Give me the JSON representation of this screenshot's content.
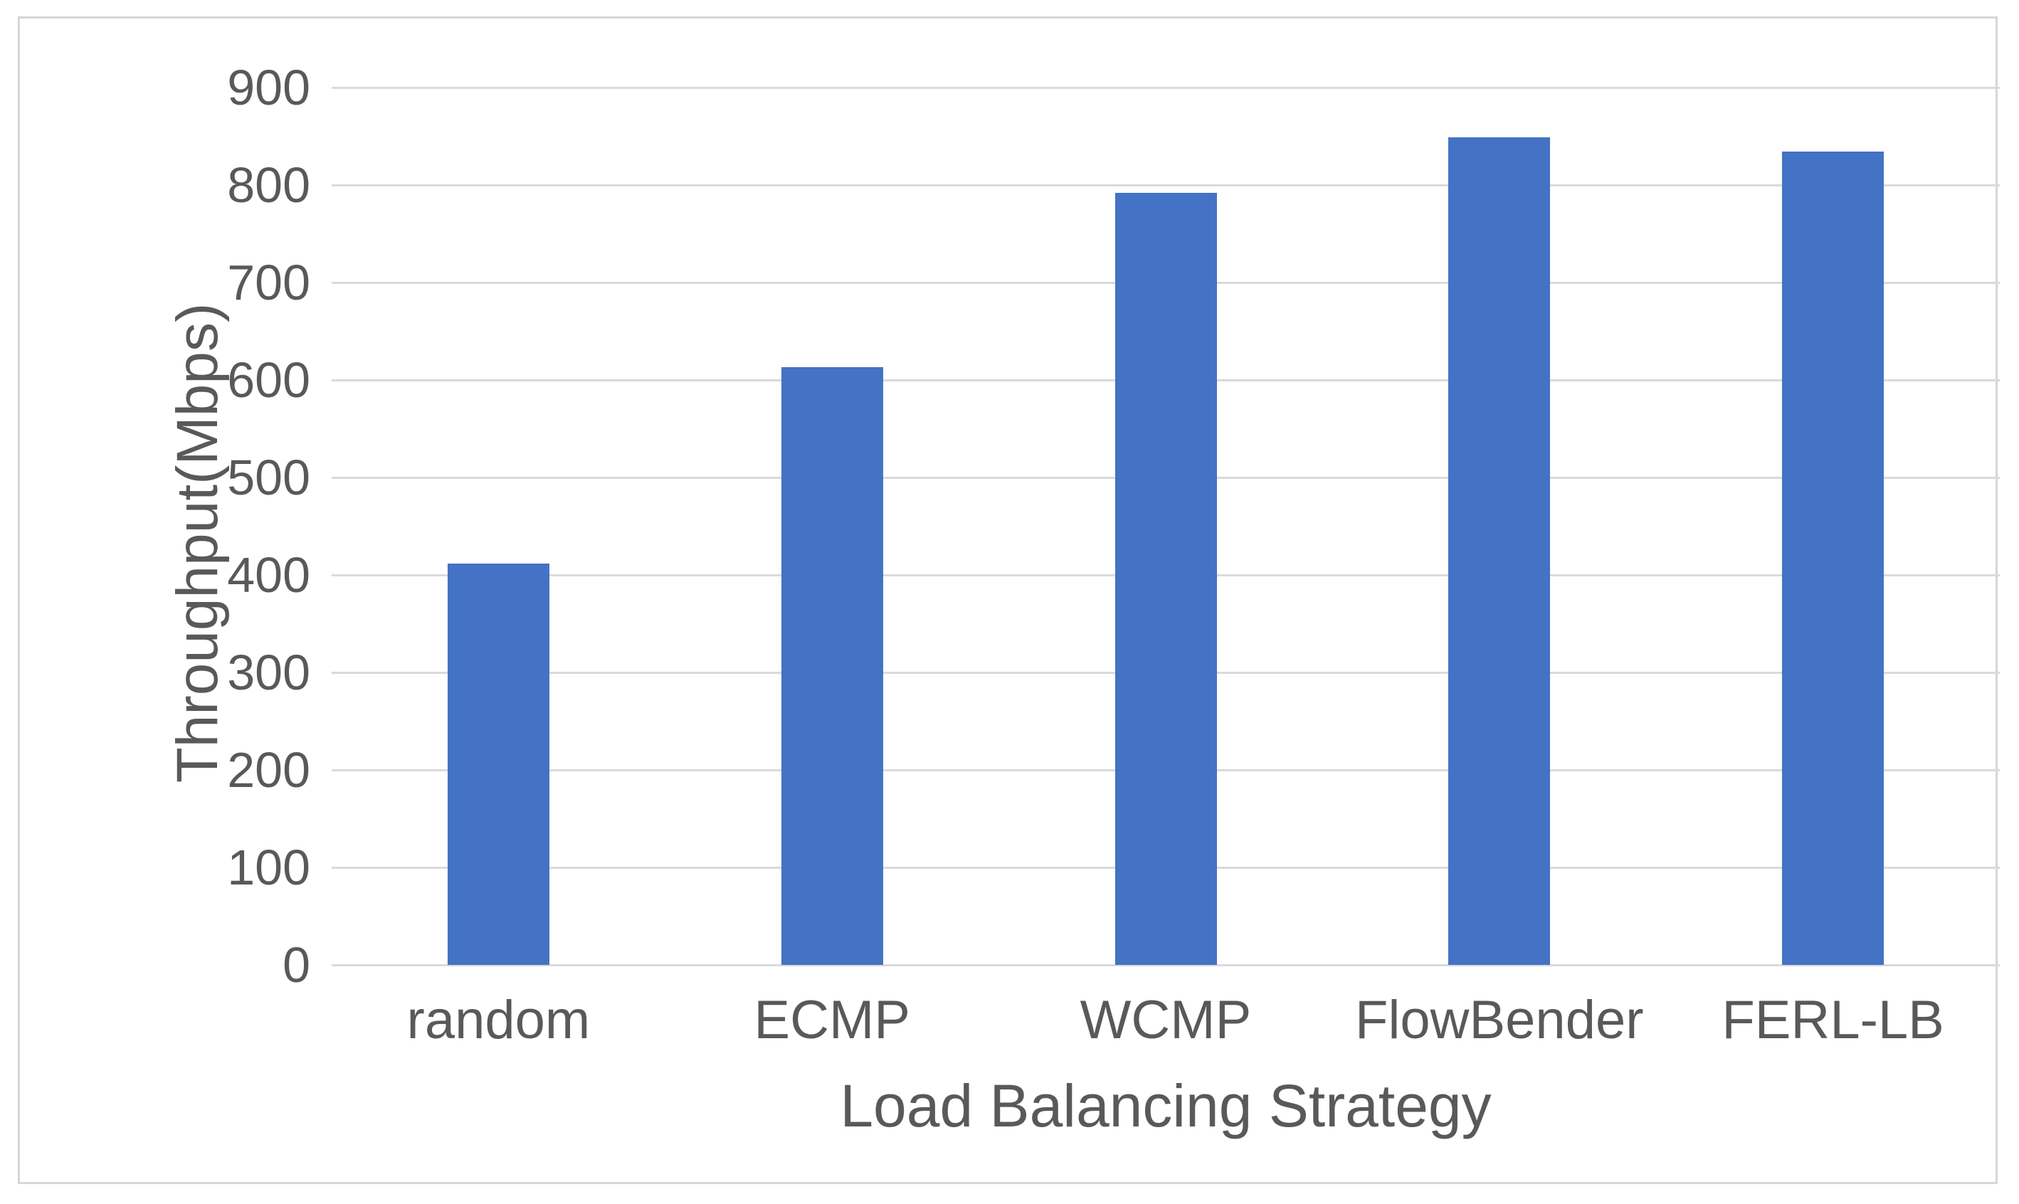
{
  "chart_data": {
    "type": "bar",
    "title": "",
    "categories": [
      "random",
      "ECMP",
      "WCMP",
      "FlowBender",
      "FERL-LB"
    ],
    "values": [
      412,
      613,
      792,
      849,
      834
    ],
    "xlabel": "Load Balancing Strategy",
    "ylabel": "Throughput(Mbps)",
    "ylim": [
      0,
      900
    ],
    "ytick_step": 100,
    "ytick_labels": [
      "0",
      "100",
      "200",
      "300",
      "400",
      "500",
      "600",
      "700",
      "800",
      "900"
    ],
    "grid": "horizontal",
    "legend": "none",
    "colors": {
      "bar": "#4472C4",
      "gridline": "#DADADA",
      "axis_text": "#595959",
      "frame_border": "#D6D6D6",
      "background": "#FFFFFF"
    }
  }
}
